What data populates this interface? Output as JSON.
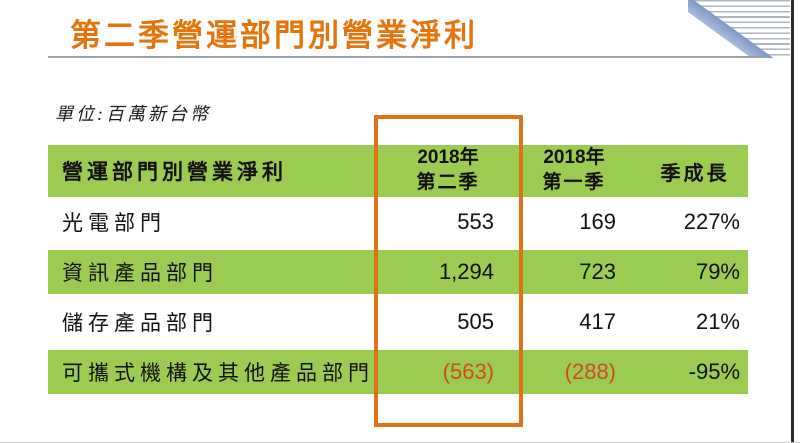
{
  "slide": {
    "title": "第二季營運部門別營業淨利",
    "unit_label": "單位:百萬新台幣"
  },
  "table": {
    "headers": {
      "col1": "營運部門別營業淨利",
      "col2": {
        "line1": "2018年",
        "line2": "第二季"
      },
      "col3": {
        "line1": "2018年",
        "line2": "第一季"
      },
      "col4": "季成長"
    },
    "rows": [
      {
        "label": "光電部門",
        "q2": "553",
        "q1": "169",
        "growth": "227%"
      },
      {
        "label": "資訊產品部門",
        "q2": "1,294",
        "q1": "723",
        "growth": "79%"
      },
      {
        "label": "儲存產品部門",
        "q2": "505",
        "q1": "417",
        "growth": "21%"
      },
      {
        "label": "可攜式機構及其他產品部門",
        "q2": "(563)",
        "q1": "(288)",
        "growth": "-95%"
      }
    ]
  },
  "colors": {
    "row_green": "#9ccb52",
    "title_orange": "#e5740d",
    "highlight_box_orange": "#e07218",
    "negative_red": "#ce4b24",
    "swoosh_blue": "#8ca5cf"
  },
  "chart_data": {
    "type": "table",
    "title": "第二季營運部門別營業淨利",
    "unit": "百萬新台幣",
    "columns": [
      "營運部門別營業淨利",
      "2018年第二季",
      "2018年第一季",
      "季成長"
    ],
    "rows": [
      [
        "光電部門",
        553,
        169,
        "227%"
      ],
      [
        "資訊產品部門",
        1294,
        723,
        "79%"
      ],
      [
        "儲存產品部門",
        505,
        417,
        "21%"
      ],
      [
        "可攜式機構及其他產品部門",
        -563,
        -288,
        "-95%"
      ]
    ],
    "highlighted_column": "2018年第二季"
  }
}
